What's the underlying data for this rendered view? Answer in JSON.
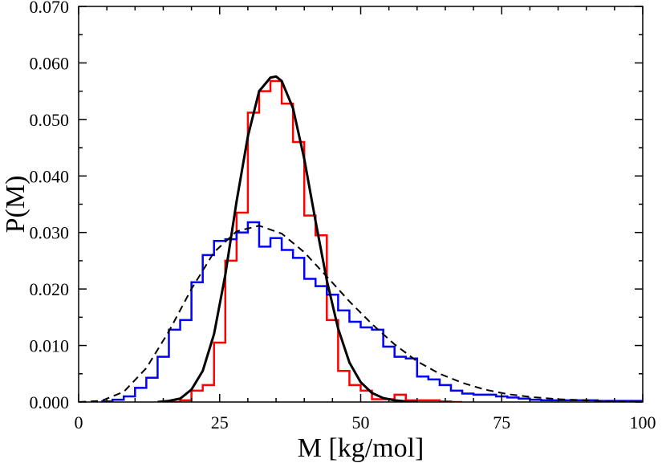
{
  "chart_data": {
    "type": "line",
    "title": "",
    "xlabel": "M [kg/mol]",
    "ylabel": "P(M)",
    "xlim": [
      0,
      100
    ],
    "ylim": [
      0,
      0.07
    ],
    "grid": false,
    "x_tick_labels": [
      "0",
      "25",
      "50",
      "75",
      "100"
    ],
    "y_tick_labels": [
      "0.000",
      "0.010",
      "0.020",
      "0.030",
      "0.040",
      "0.050",
      "0.060",
      "0.070"
    ],
    "colors": {
      "red": "#ff0000",
      "blue": "#0000ff",
      "black": "#000000"
    },
    "series": [
      {
        "name": "red histogram",
        "kind": "step",
        "color": "#ff0000",
        "bin_width": 2,
        "bin_start": 16,
        "values": [
          0.0,
          0.0003,
          0.002,
          0.003,
          0.0105,
          0.025,
          0.0335,
          0.0512,
          0.055,
          0.0568,
          0.0528,
          0.046,
          0.033,
          0.0295,
          0.0145,
          0.0055,
          0.003,
          0.002,
          0.0005,
          0.0005,
          0.0013,
          0.0003,
          0.0003,
          0.0003,
          0.0001,
          0.0
        ]
      },
      {
        "name": "blue histogram",
        "kind": "step",
        "color": "#0000ff",
        "bin_width": 2,
        "bin_start": 4,
        "values": [
          0.0001,
          0.0004,
          0.001,
          0.0025,
          0.0043,
          0.008,
          0.0128,
          0.0145,
          0.0212,
          0.026,
          0.0285,
          0.0288,
          0.03,
          0.0318,
          0.0275,
          0.029,
          0.0269,
          0.0255,
          0.0218,
          0.0205,
          0.019,
          0.0162,
          0.0142,
          0.0132,
          0.0128,
          0.0098,
          0.008,
          0.0077,
          0.0045,
          0.004,
          0.003,
          0.002,
          0.0015,
          0.0013,
          0.0013,
          0.001,
          0.0008,
          0.0006,
          0.0004,
          0.0003,
          0.0003,
          0.0003,
          0.0003,
          0.0003,
          0.0002,
          0.0002,
          0.0002,
          0.0002,
          0.0001
        ]
      },
      {
        "name": "solid fit",
        "kind": "curve",
        "color": "#000000",
        "style": "solid",
        "x": [
          14,
          16,
          18,
          20,
          22,
          24,
          26,
          28,
          30,
          32,
          34,
          35,
          36,
          38,
          40,
          42,
          44,
          46,
          48,
          50,
          52,
          54,
          56,
          58,
          60
        ],
        "y": [
          0.0,
          0.0002,
          0.0006,
          0.0022,
          0.0055,
          0.012,
          0.0225,
          0.0355,
          0.047,
          0.055,
          0.0574,
          0.0576,
          0.0568,
          0.052,
          0.043,
          0.032,
          0.0215,
          0.013,
          0.007,
          0.0035,
          0.0016,
          0.0007,
          0.0003,
          0.0001,
          0.0
        ]
      },
      {
        "name": "dashed fit",
        "kind": "curve",
        "color": "#000000",
        "style": "dashed",
        "x": [
          0,
          4,
          8,
          12,
          16,
          20,
          24,
          28,
          32,
          36,
          40,
          44,
          48,
          52,
          56,
          60,
          64,
          68,
          72,
          76,
          80,
          85,
          90,
          95,
          100
        ],
        "y": [
          0.0,
          0.0002,
          0.0018,
          0.006,
          0.0125,
          0.02,
          0.0265,
          0.0302,
          0.0312,
          0.0298,
          0.0265,
          0.0222,
          0.0178,
          0.0138,
          0.0102,
          0.0072,
          0.005,
          0.0034,
          0.0022,
          0.0014,
          0.0009,
          0.0005,
          0.0003,
          0.0001,
          0.0
        ]
      }
    ]
  }
}
